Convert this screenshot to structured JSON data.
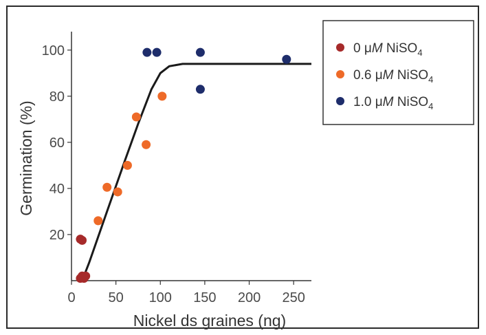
{
  "chart_data": {
    "type": "scatter",
    "title": "",
    "xlabel": "Nickel ds graines (ng)",
    "ylabel": "Germination (%)",
    "xlim": [
      0,
      270
    ],
    "ylim": [
      0,
      108
    ],
    "xticks": [
      0,
      50,
      100,
      150,
      200,
      250
    ],
    "yticks": [
      20,
      40,
      60,
      80,
      100
    ],
    "grid": false,
    "legend_position": "right",
    "series": [
      {
        "name": "0 μM NiSO4",
        "name_parts": {
          "pre": "0 ",
          "mu": "μ",
          "unit": "M",
          "chem": " NiSO",
          "sub": "4"
        },
        "color": "#a62a2a",
        "points": [
          [
            10,
            1
          ],
          [
            12,
            2
          ],
          [
            14,
            1
          ],
          [
            16,
            2
          ],
          [
            10,
            18
          ],
          [
            12,
            17.5
          ]
        ]
      },
      {
        "name": "0.6 μM NiSO4",
        "name_parts": {
          "pre": "0.6 ",
          "mu": "μ",
          "unit": "M",
          "chem": " NiSO",
          "sub": "4"
        },
        "color": "#ee6a28",
        "points": [
          [
            30,
            26
          ],
          [
            40,
            40.5
          ],
          [
            52,
            38.5
          ],
          [
            63,
            50
          ],
          [
            73,
            71
          ],
          [
            84,
            59
          ],
          [
            102,
            80
          ]
        ]
      },
      {
        "name": "1.0 μM NiSO4",
        "name_parts": {
          "pre": "1.0 ",
          "mu": "μ",
          "unit": "M",
          "chem": " NiSO",
          "sub": "4"
        },
        "color": "#1e2d6b",
        "points": [
          [
            85,
            99
          ],
          [
            96,
            99
          ],
          [
            145,
            99
          ],
          [
            145,
            83
          ],
          [
            242,
            96
          ]
        ]
      }
    ],
    "fit_line": {
      "color": "#1a1a1a",
      "points": [
        [
          12,
          0
        ],
        [
          20,
          8
        ],
        [
          40,
          30
        ],
        [
          60,
          52
        ],
        [
          75,
          68
        ],
        [
          90,
          83
        ],
        [
          100,
          90
        ],
        [
          110,
          93
        ],
        [
          125,
          94
        ],
        [
          150,
          94
        ],
        [
          200,
          94
        ],
        [
          270,
          94
        ]
      ]
    }
  }
}
